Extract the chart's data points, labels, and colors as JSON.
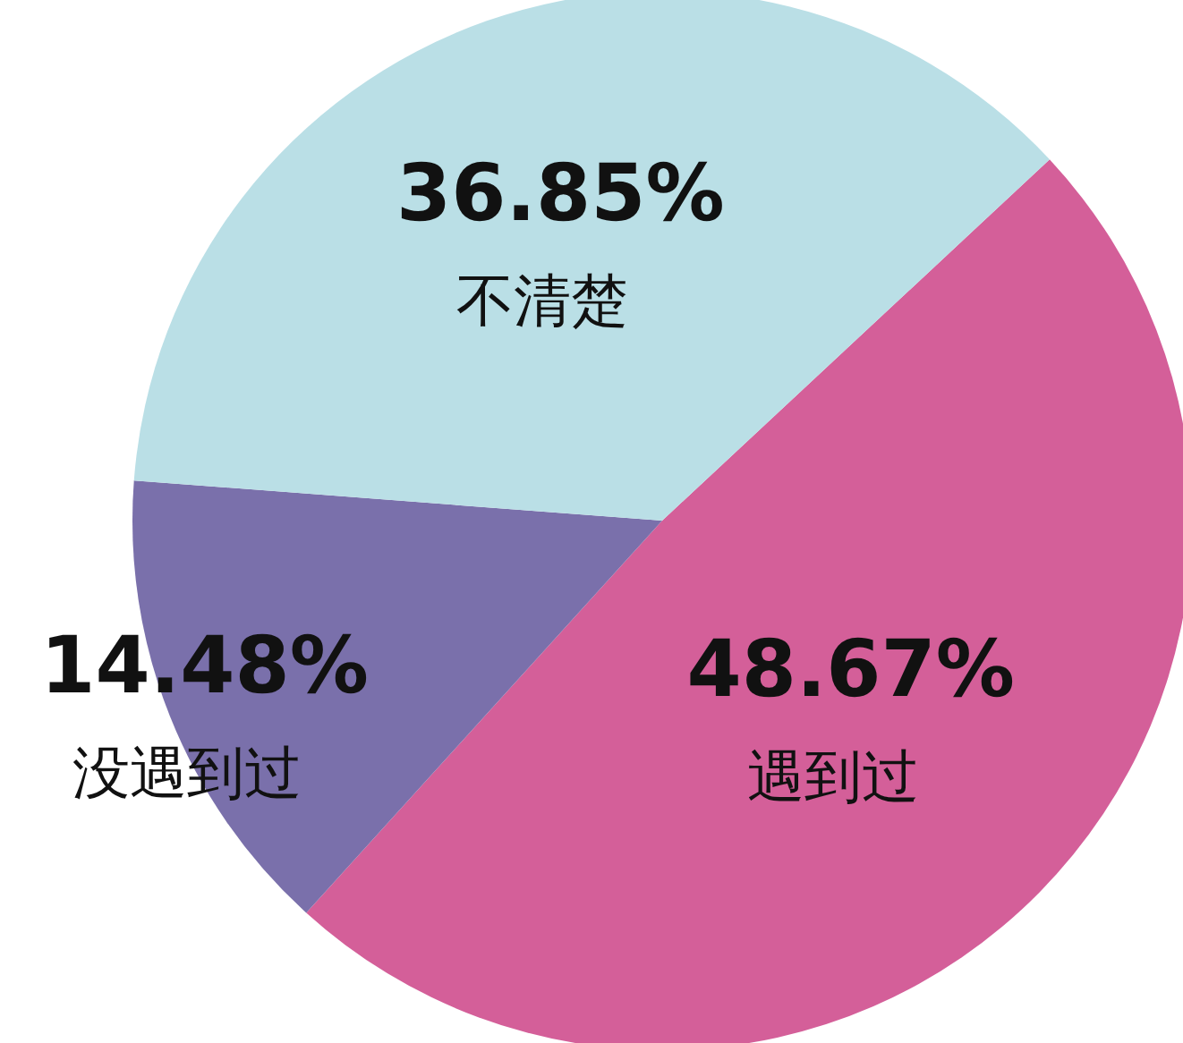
{
  "chart_data": {
    "type": "pie",
    "categories": [
      "遇到过",
      "没遇到过",
      "不清楚"
    ],
    "values": [
      48.67,
      14.48,
      36.85
    ],
    "value_labels": [
      "48.67%",
      "14.48%",
      "36.85%"
    ],
    "colors": [
      "#d45f99",
      "#7a70ab",
      "#badfe6"
    ]
  }
}
